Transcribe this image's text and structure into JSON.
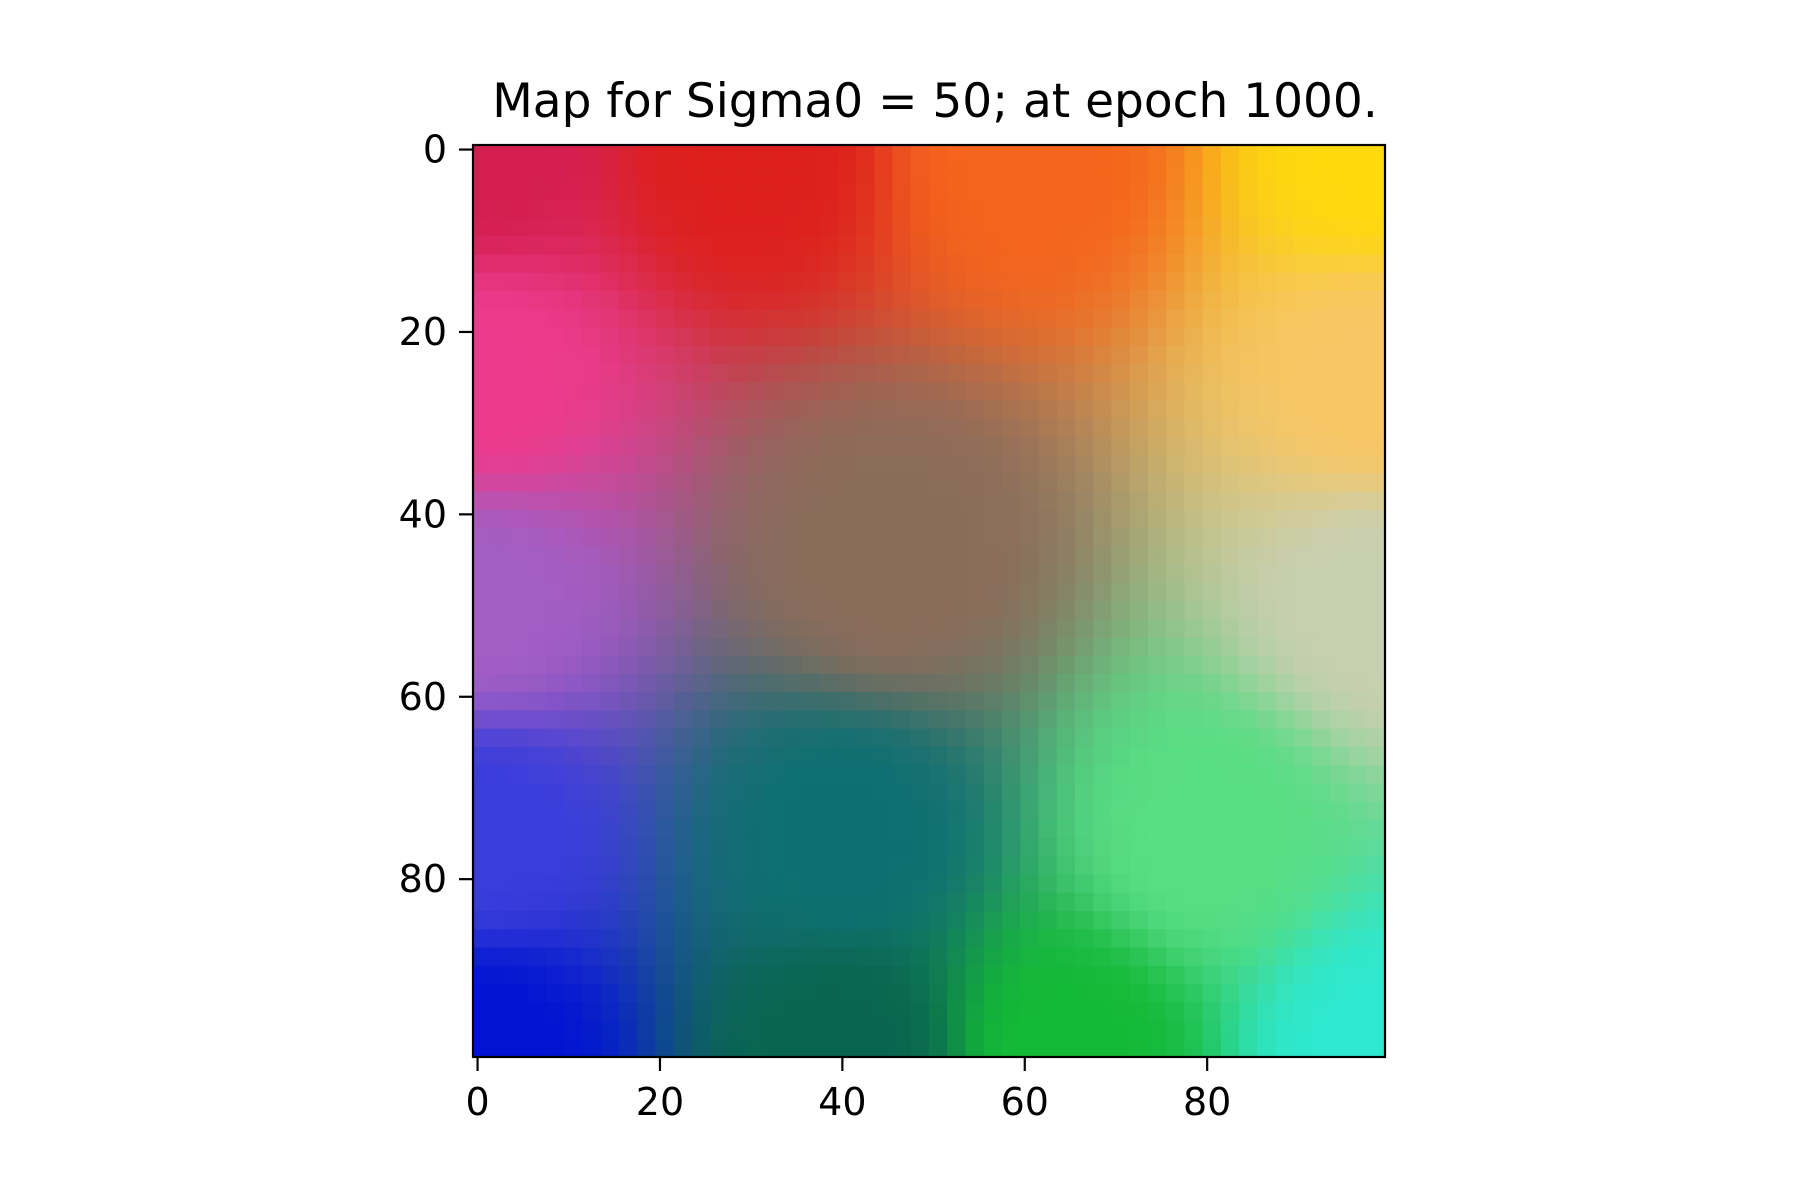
{
  "chart_data": {
    "type": "heatmap",
    "title": "Map for Sigma0 = 50; at epoch 1000.",
    "xlabel": "",
    "ylabel": "",
    "grid_size": [
      100,
      100
    ],
    "xlim": [
      -0.5,
      99.5
    ],
    "ylim": [
      99.5,
      -0.5
    ],
    "y_axis_inverted": true,
    "x_ticks": [
      0,
      20,
      40,
      60,
      80
    ],
    "x_tick_labels": [
      "0",
      "20",
      "40",
      "60",
      "80"
    ],
    "y_ticks": [
      0,
      20,
      40,
      60,
      80
    ],
    "y_tick_labels": [
      "0",
      "20",
      "40",
      "60",
      "80"
    ],
    "grid": false,
    "legend": "none",
    "colorbar": false,
    "pixel_colors": "RGB per cell (each cell's colour is the value shown)",
    "color_samples": [
      {
        "row": 0,
        "col": 0,
        "color": "#d41e50"
      },
      {
        "row": 0,
        "col": 30,
        "color": "#dd1f1c"
      },
      {
        "row": 0,
        "col": 60,
        "color": "#f5641c"
      },
      {
        "row": 0,
        "col": 99,
        "color": "#fed90c"
      },
      {
        "row": 25,
        "col": 0,
        "color": "#ee3a8c"
      },
      {
        "row": 25,
        "col": 99,
        "color": "#f8c664"
      },
      {
        "row": 45,
        "col": 45,
        "color": "#8b6c5a"
      },
      {
        "row": 50,
        "col": 0,
        "color": "#a35ec4"
      },
      {
        "row": 50,
        "col": 99,
        "color": "#c8cfb1"
      },
      {
        "row": 75,
        "col": 0,
        "color": "#3a3ddc"
      },
      {
        "row": 75,
        "col": 40,
        "color": "#0e6f72"
      },
      {
        "row": 75,
        "col": 80,
        "color": "#58de84"
      },
      {
        "row": 99,
        "col": 0,
        "color": "#0014d2"
      },
      {
        "row": 99,
        "col": 40,
        "color": "#09654f"
      },
      {
        "row": 99,
        "col": 65,
        "color": "#13ba36"
      },
      {
        "row": 99,
        "col": 99,
        "color": "#2ee9d0"
      }
    ]
  }
}
